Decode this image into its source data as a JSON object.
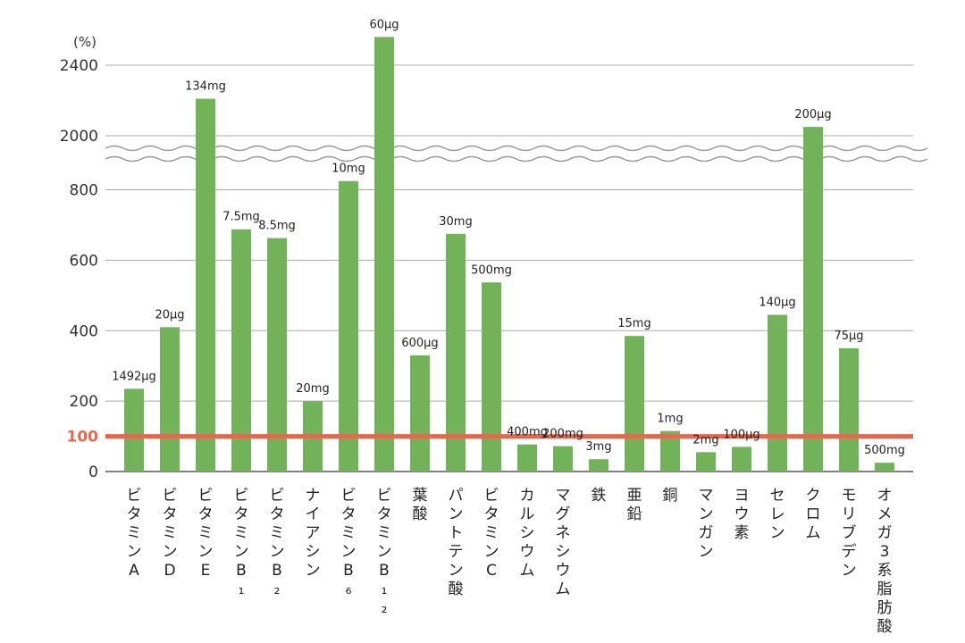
{
  "chart_data": {
    "type": "bar",
    "y_unit": "(%)",
    "y_ticks": [
      0,
      200,
      400,
      600,
      800,
      2000,
      2400
    ],
    "y_tick_labels": [
      "0",
      "200",
      "400",
      "600",
      "800",
      "2000",
      "2400"
    ],
    "axis_break": [
      900,
      1950
    ],
    "reference_line": {
      "value": 100,
      "label": "100",
      "color": "#e2684f"
    },
    "bar_color": "#72b35a",
    "grid": true,
    "categories": [
      "ビタミンA",
      "ビタミンD",
      "ビタミンE",
      "ビタミンB₁",
      "ビタミンB₂",
      "ナイアシン",
      "ビタミンB₆",
      "ビタミンB₁₂",
      "葉酸",
      "パントテン酸",
      "ビタミンC",
      "カルシウム",
      "マグネシウム",
      "鉄",
      "亜鉛",
      "銅",
      "マンガン",
      "ヨウ素",
      "セレン",
      "クロム",
      "モリブデン",
      "オメガ3系脂肪酸"
    ],
    "values": [
      235,
      410,
      2210,
      688,
      663,
      200,
      825,
      2560,
      330,
      675,
      537,
      77,
      72,
      35,
      385,
      115,
      55,
      70,
      445,
      2050,
      350,
      25
    ],
    "data_labels": [
      "1492μg",
      "20μg",
      "134mg",
      "7.5mg",
      "8.5mg",
      "20mg",
      "10mg",
      "60μg",
      "600μg",
      "30mg",
      "500mg",
      "400mg",
      "200mg",
      "3mg",
      "15mg",
      "1mg",
      "2mg",
      "100μg",
      "140μg",
      "200μg",
      "75μg",
      "500mg"
    ]
  }
}
